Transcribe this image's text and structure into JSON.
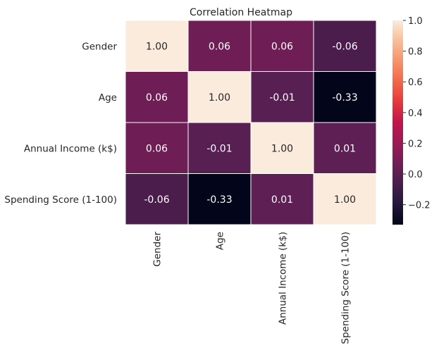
{
  "chart_data": {
    "type": "heatmap",
    "title": "Correlation Heatmap",
    "row_labels": [
      "Gender",
      "Age",
      "Annual Income (k$)",
      "Spending Score (1-100)"
    ],
    "col_labels": [
      "Gender",
      "Age",
      "Annual Income (k$)",
      "Spending Score (1-100)"
    ],
    "values": [
      [
        1.0,
        0.06,
        0.06,
        -0.06
      ],
      [
        0.06,
        1.0,
        -0.01,
        -0.33
      ],
      [
        0.06,
        -0.01,
        1.0,
        0.01
      ],
      [
        -0.06,
        -0.33,
        0.01,
        1.0
      ]
    ],
    "value_format": "2 decimals",
    "colorbar": {
      "vmin": -0.33,
      "vmax": 1.0,
      "ticks": [
        -0.2,
        0.0,
        0.2,
        0.4,
        0.6,
        0.8,
        1.0
      ],
      "tick_labels": [
        "−0.2",
        "0.0",
        "0.2",
        "0.4",
        "0.6",
        "0.8",
        "1.0"
      ],
      "colormap": "rocket"
    },
    "cell_gridlines": true,
    "gridline_color": "#ffffff"
  }
}
